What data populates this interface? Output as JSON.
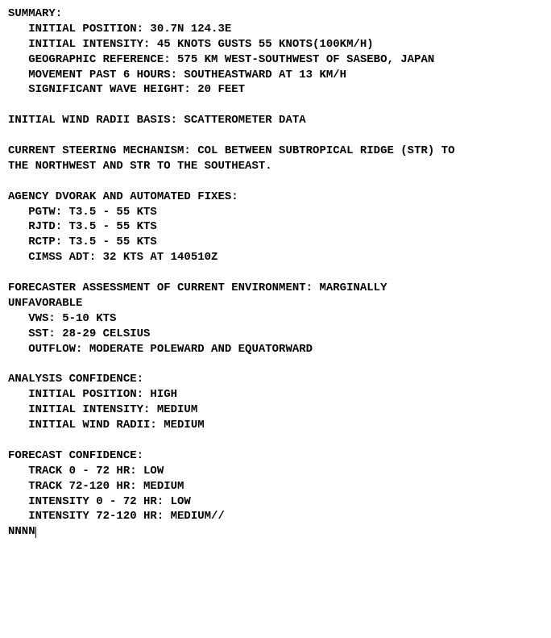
{
  "summary": {
    "header": "SUMMARY:",
    "initial_position": "   INITIAL POSITION: 30.7N 124.3E",
    "initial_intensity": "   INITIAL INTENSITY: 45 KNOTS GUSTS 55 KNOTS(100KM/H)",
    "geographic_reference": "   GEOGRAPHIC REFERENCE: 575 KM WEST-SOUTHWEST OF SASEBO, JAPAN",
    "movement": "   MOVEMENT PAST 6 HOURS: SOUTHEASTWARD AT 13 KM/H",
    "wave_height": "   SIGNIFICANT WAVE HEIGHT: 20 FEET"
  },
  "blank": " ",
  "wind_radii_basis": "INITIAL WIND RADII BASIS: SCATTEROMETER DATA",
  "steering": {
    "line1": "CURRENT STEERING MECHANISM: COL BETWEEN SUBTROPICAL RIDGE (STR) TO",
    "line2": "THE NORTHWEST AND STR TO THE SOUTHEAST."
  },
  "dvorak": {
    "header": "AGENCY DVORAK AND AUTOMATED FIXES:",
    "pgtw": "   PGTW: T3.5 - 55 KTS",
    "rjtd": "   RJTD: T3.5 - 55 KTS",
    "rctp": "   RCTP: T3.5 - 55 KTS",
    "cimss": "   CIMSS ADT: 32 KTS AT 140510Z"
  },
  "environment": {
    "line1": "FORECASTER ASSESSMENT OF CURRENT ENVIRONMENT: MARGINALLY",
    "line2": "UNFAVORABLE",
    "vws": "   VWS: 5-10 KTS",
    "sst": "   SST: 28-29 CELSIUS",
    "outflow": "   OUTFLOW: MODERATE POLEWARD AND EQUATORWARD"
  },
  "analysis": {
    "header": "ANALYSIS CONFIDENCE:",
    "pos": "   INITIAL POSITION: HIGH",
    "intensity": "   INITIAL INTENSITY: MEDIUM",
    "radii": "   INITIAL WIND RADII: MEDIUM"
  },
  "forecast": {
    "header": "FORECAST CONFIDENCE:",
    "track1": "   TRACK 0 - 72 HR: LOW",
    "track2": "   TRACK 72-120 HR: MEDIUM",
    "int1": "   INTENSITY 0 - 72 HR: LOW",
    "int2": "   INTENSITY 72-120 HR: MEDIUM//"
  },
  "terminator": "NNNN"
}
